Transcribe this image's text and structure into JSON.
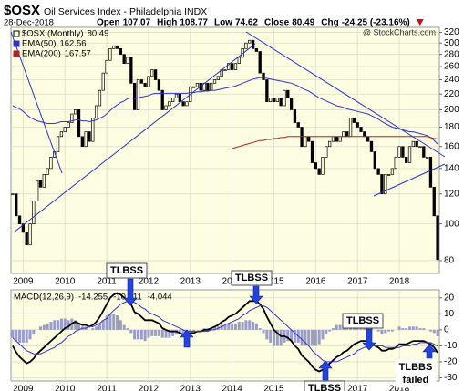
{
  "chart_data": [
    {
      "type": "candlestick",
      "title": "$OSX",
      "subtitle": "Oil Services Index - Philadelphia INDX",
      "date": "28-Dec-2018",
      "quote": [
        {
          "label": "Open",
          "value": "107.07"
        },
        {
          "label": "High",
          "value": "108.77"
        },
        {
          "label": "Low",
          "value": "74.62"
        },
        {
          "label": "Close",
          "value": "80.49"
        },
        {
          "label": "Chg",
          "value": "-24.25 (-23.16%)"
        }
      ],
      "credit": "@ StockCharts.com",
      "background": "#fdfde2",
      "log_scale": true,
      "grid": true,
      "ylim": [
        74,
        330
      ],
      "yticks": [
        80,
        100,
        120,
        140,
        160,
        180,
        200,
        220,
        240,
        260,
        280,
        300,
        320
      ],
      "categories": [
        null,
        null,
        null,
        "2009",
        null,
        null,
        null,
        null,
        null,
        null,
        null,
        null,
        null,
        null,
        null,
        "2010",
        null,
        null,
        null,
        null,
        null,
        null,
        null,
        null,
        null,
        null,
        null,
        "2011",
        null,
        null,
        null,
        null,
        null,
        null,
        null,
        null,
        null,
        null,
        null,
        "2012",
        null,
        null,
        null,
        null,
        null,
        null,
        null,
        null,
        null,
        null,
        null,
        "2013",
        null,
        null,
        null,
        null,
        null,
        null,
        null,
        null,
        null,
        null,
        null,
        "2014",
        null,
        null,
        null,
        null,
        null,
        null,
        null,
        null,
        null,
        null,
        null,
        "2015",
        null,
        null,
        null,
        null,
        null,
        null,
        null,
        null,
        null,
        null,
        null,
        "2016",
        null,
        null,
        null,
        null,
        null,
        null,
        null,
        null,
        null,
        null,
        null,
        "2017",
        null,
        null,
        null,
        null,
        null,
        null,
        null,
        null,
        null,
        null,
        null,
        "2018",
        null,
        null,
        null,
        null,
        null,
        null,
        null,
        null,
        null,
        null,
        null
      ],
      "series": [
        {
          "name": "$OSX (Monthly)",
          "color": "#000000",
          "values": [
            120,
            105,
            100,
            95,
            88,
            100,
            115,
            130,
            125,
            135,
            140,
            150,
            155,
            170,
            175,
            180,
            185,
            195,
            200,
            170,
            160,
            175,
            165,
            190,
            205,
            225,
            250,
            270,
            290,
            295,
            290,
            280,
            265,
            275,
            235,
            200,
            240,
            235,
            230,
            245,
            255,
            240,
            225,
            200,
            205,
            210,
            215,
            220,
            210,
            205,
            210,
            230,
            230,
            235,
            225,
            235,
            225,
            235,
            240,
            245,
            255,
            255,
            265,
            255,
            265,
            275,
            290,
            300,
            305,
            290,
            285,
            250,
            240,
            210,
            215,
            210,
            215,
            205,
            225,
            215,
            200,
            185,
            180,
            160,
            170,
            165,
            145,
            140,
            135,
            150,
            160,
            165,
            170,
            165,
            170,
            175,
            170,
            190,
            185,
            180,
            175,
            170,
            165,
            155,
            140,
            135,
            120,
            135,
            135,
            140,
            150,
            160,
            150,
            145,
            160,
            165,
            160,
            160,
            150,
            150,
            125,
            105,
            80.49
          ]
        },
        {
          "name": "EMA(50)",
          "color": "#3333cc",
          "values": [
            205,
            203,
            201,
            198,
            194,
            191,
            189,
            187,
            186,
            185,
            184,
            184,
            184,
            185,
            186,
            186,
            186,
            187,
            188,
            188,
            187,
            187,
            186,
            187,
            188,
            190,
            192,
            195,
            199,
            203,
            206,
            209,
            211,
            214,
            215,
            214,
            215,
            216,
            217,
            218,
            220,
            221,
            221,
            221,
            221,
            221,
            221,
            221,
            221,
            221,
            221,
            222,
            222,
            223,
            223,
            224,
            224,
            225,
            225,
            226,
            227,
            228,
            229,
            230,
            231,
            233,
            235,
            237,
            239,
            241,
            242,
            243,
            243,
            242,
            241,
            240,
            239,
            238,
            237,
            236,
            235,
            233,
            231,
            228,
            226,
            224,
            221,
            218,
            215,
            213,
            211,
            209,
            207,
            205,
            204,
            203,
            201,
            200,
            199,
            198,
            197,
            196,
            195,
            193,
            191,
            189,
            186,
            184,
            182,
            180,
            179,
            178,
            177,
            176,
            175,
            175,
            174,
            173,
            172,
            171,
            169,
            166,
            162.56
          ]
        },
        {
          "name": "EMA(200)",
          "color": "#b22222",
          "values": [
            null,
            null,
            null,
            null,
            null,
            null,
            null,
            null,
            null,
            null,
            null,
            null,
            null,
            null,
            null,
            null,
            null,
            null,
            null,
            null,
            null,
            null,
            null,
            null,
            null,
            null,
            null,
            null,
            null,
            null,
            null,
            null,
            null,
            null,
            null,
            null,
            null,
            null,
            null,
            null,
            null,
            null,
            null,
            null,
            null,
            null,
            null,
            null,
            null,
            null,
            null,
            null,
            null,
            null,
            null,
            null,
            null,
            null,
            null,
            null,
            null,
            null,
            null,
            158,
            159,
            160,
            161,
            162,
            163,
            164,
            165,
            166,
            166,
            167,
            167,
            168,
            168,
            169,
            169,
            170,
            170,
            170,
            170,
            170,
            170,
            170,
            170,
            170,
            170,
            170,
            170,
            170,
            170,
            170,
            170,
            170,
            170,
            170,
            170,
            170,
            170,
            170,
            170,
            170,
            170,
            170,
            170,
            170,
            170,
            170,
            170,
            170,
            170,
            170,
            170,
            170,
            170,
            170,
            170,
            170,
            169,
            168,
            167.57
          ]
        }
      ]
    },
    {
      "type": "macd",
      "title": "MACD(12,26,9)",
      "background": "#fdfde2",
      "grid": true,
      "ylim": [
        -32,
        25
      ],
      "yticks": [
        -30,
        -20,
        -10,
        0,
        10,
        20
      ],
      "categories": [
        null,
        null,
        null,
        "2009",
        null,
        null,
        null,
        null,
        null,
        null,
        null,
        null,
        null,
        null,
        null,
        "2010",
        null,
        null,
        null,
        null,
        null,
        null,
        null,
        null,
        null,
        null,
        null,
        "2011",
        null,
        null,
        null,
        null,
        null,
        null,
        null,
        null,
        null,
        null,
        null,
        "2012",
        null,
        null,
        null,
        null,
        null,
        null,
        null,
        null,
        null,
        null,
        null,
        "2013",
        null,
        null,
        null,
        null,
        null,
        null,
        null,
        null,
        null,
        null,
        null,
        "2014",
        null,
        null,
        null,
        null,
        null,
        null,
        null,
        null,
        null,
        null,
        null,
        "2015",
        null,
        null,
        null,
        null,
        null,
        null,
        null,
        null,
        null,
        null,
        null,
        "2016",
        null,
        null,
        null,
        null,
        null,
        null,
        null,
        null,
        null,
        null,
        null,
        "2017",
        null,
        null,
        null,
        null,
        null,
        null,
        null,
        null,
        null,
        null,
        null,
        "2018",
        null,
        null,
        null,
        null,
        null,
        null,
        null,
        null,
        null,
        null,
        null
      ],
      "series": [
        {
          "color": "#000000",
          "values": [
            -10,
            -14,
            -17,
            -19,
            -21,
            -20,
            -18,
            -15,
            -13,
            -11,
            -9,
            -7,
            -5,
            -3,
            -1,
            1,
            2,
            4,
            5,
            4,
            3,
            3,
            2,
            3,
            5,
            8,
            12,
            16,
            20,
            22,
            23,
            22,
            20,
            19,
            16,
            11,
            10,
            8,
            6,
            6,
            6,
            5,
            4,
            1,
            0,
            -1,
            -1,
            -1,
            -2,
            -3,
            -3,
            -2,
            -2,
            -1,
            -1,
            0,
            0,
            1,
            2,
            3,
            5,
            6,
            8,
            9,
            10,
            12,
            14,
            16,
            18,
            18,
            18,
            16,
            13,
            8,
            4,
            0,
            -2,
            -4,
            -4,
            -5,
            -7,
            -10,
            -12,
            -16,
            -18,
            -20,
            -23,
            -25,
            -26,
            -25,
            -23,
            -21,
            -19,
            -17,
            -16,
            -14,
            -13,
            -11,
            -9,
            -8,
            -7,
            -7,
            -7,
            -8,
            -10,
            -11,
            -13,
            -13,
            -12,
            -12,
            -11,
            -9,
            -9,
            -9,
            -8,
            -7,
            -7,
            -7,
            -7,
            -8,
            -9,
            -11,
            -14.255
          ]
        },
        {
          "color": "#3333cc",
          "values": [
            -5,
            -7,
            -9,
            -11,
            -13,
            -14,
            -15,
            -15,
            -15,
            -14,
            -13,
            -12,
            -11,
            -9,
            -8,
            -6,
            -4,
            -3,
            -1,
            0,
            1,
            1,
            2,
            2,
            3,
            4,
            6,
            7,
            10,
            12,
            14,
            16,
            17,
            18,
            18,
            17,
            16,
            14,
            13,
            11,
            10,
            9,
            8,
            6,
            5,
            4,
            3,
            2,
            1,
            0,
            -1,
            -1,
            -1,
            -1,
            -1,
            -1,
            -1,
            0,
            0,
            1,
            2,
            3,
            4,
            5,
            6,
            7,
            9,
            10,
            12,
            13,
            14,
            15,
            15,
            14,
            12,
            10,
            8,
            6,
            4,
            2,
            0,
            -2,
            -4,
            -6,
            -8,
            -10,
            -13,
            -15,
            -17,
            -19,
            -20,
            -20,
            -20,
            -20,
            -19,
            -18,
            -17,
            -16,
            -15,
            -13,
            -12,
            -11,
            -10,
            -10,
            -10,
            -10,
            -10,
            -11,
            -11,
            -11,
            -11,
            -11,
            -10,
            -10,
            -10,
            -9,
            -9,
            -8,
            -8,
            -8,
            -8,
            -9,
            -10.211
          ]
        },
        {
          "color": "#9a9ccb",
          "style": "histogram",
          "values": [
            -5,
            -7,
            -8,
            -8,
            -8,
            -6,
            -3,
            0,
            2,
            3,
            4,
            5,
            6,
            6,
            7,
            7,
            6,
            7,
            6,
            4,
            2,
            2,
            0,
            1,
            2,
            4,
            6,
            9,
            10,
            10,
            9,
            6,
            3,
            1,
            -2,
            -6,
            -6,
            -6,
            -7,
            -5,
            -4,
            -4,
            -4,
            -5,
            -5,
            -5,
            -4,
            -3,
            -3,
            -3,
            -2,
            -1,
            -1,
            0,
            0,
            1,
            1,
            1,
            2,
            2,
            3,
            3,
            4,
            4,
            4,
            5,
            5,
            6,
            6,
            5,
            4,
            1,
            -2,
            -6,
            -8,
            -10,
            -10,
            -10,
            -8,
            -7,
            -7,
            -8,
            -8,
            -10,
            -10,
            -10,
            -10,
            -10,
            -9,
            -6,
            -3,
            -1,
            1,
            3,
            3,
            4,
            4,
            5,
            6,
            5,
            5,
            4,
            3,
            2,
            0,
            -1,
            -3,
            -2,
            -1,
            -1,
            0,
            2,
            1,
            1,
            2,
            2,
            2,
            1,
            1,
            0,
            -1,
            -2,
            -4.044
          ]
        }
      ],
      "annotations": [
        {
          "lines": [
            "TLBSS"
          ]
        },
        {
          "lines": [
            "TLBSS"
          ]
        },
        {
          "lines": [
            "TLBSS"
          ]
        },
        {
          "lines": [
            "TLBSS"
          ]
        },
        {
          "lines": [
            "TLBBS",
            "failed"
          ]
        }
      ]
    }
  ]
}
